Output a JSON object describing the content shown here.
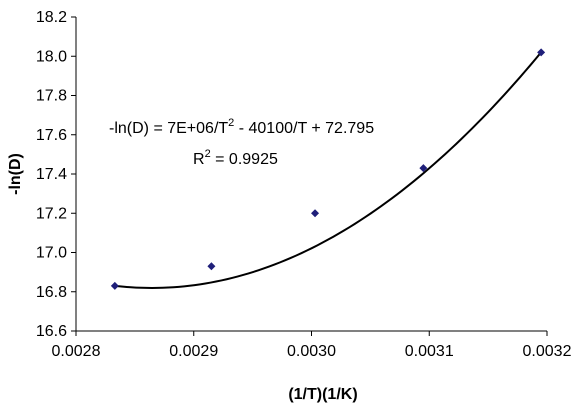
{
  "chart_data": {
    "type": "scatter",
    "x_label": "(1/T)(1/K)",
    "y_label": "-ln(D)",
    "xlim": [
      0.0028,
      0.0032
    ],
    "ylim": [
      16.6,
      18.2
    ],
    "x_ticks": [
      "0.0028",
      "0.0029",
      "0.0030",
      "0.0031",
      "0.0032"
    ],
    "y_ticks": [
      "16.6",
      "16.8",
      "17.0",
      "17.2",
      "17.4",
      "17.6",
      "17.8",
      "18.0",
      "18.2"
    ],
    "grid": false,
    "legend": "none",
    "marker_color": "#1f1f7a",
    "curve_color": "#000000",
    "points": [
      {
        "x": 0.002833,
        "y": 16.83
      },
      {
        "x": 0.002915,
        "y": 16.93
      },
      {
        "x": 0.003003,
        "y": 17.2
      },
      {
        "x": 0.003095,
        "y": 17.43
      },
      {
        "x": 0.003195,
        "y": 18.02
      }
    ],
    "trendline": {
      "type": "polynomial",
      "coefficients_in_T": {
        "a_over_T2": 7000000,
        "b_over_T": -40100,
        "c": 72.795
      },
      "equation_text": "-ln(D) = 7E+06/T",
      "equation_exp": "2",
      "equation_rest": " - 40100/T + 72.795",
      "r2_label": "R",
      "r2_exp": "2",
      "r2_value": " = 0.9925"
    }
  }
}
